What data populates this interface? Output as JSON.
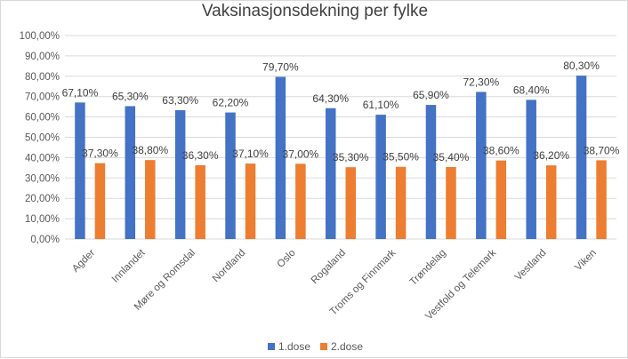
{
  "chart_data": {
    "type": "bar",
    "title": "Vaksinasjonsdekning per fylke",
    "xlabel": "",
    "ylabel": "",
    "ylim": [
      0,
      100
    ],
    "yticks": [
      "0,00%",
      "10,00%",
      "20,00%",
      "30,00%",
      "40,00%",
      "50,00%",
      "60,00%",
      "70,00%",
      "80,00%",
      "90,00%",
      "100,00%"
    ],
    "categories": [
      "Agder",
      "Innlandet",
      "Møre og Romsdal",
      "Nordland",
      "Oslo",
      "Rogaland",
      "Troms og Finnmark",
      "Trøndelag",
      "Vestfold og Telemark",
      "Vestland",
      "Viken"
    ],
    "series": [
      {
        "name": "1.dose",
        "color": "#4472c4",
        "values": [
          67.1,
          65.3,
          63.3,
          62.2,
          79.7,
          64.3,
          61.1,
          65.9,
          72.3,
          68.4,
          80.3
        ],
        "labels": [
          "67,10%",
          "65,30%",
          "63,30%",
          "62,20%",
          "79,70%",
          "64,30%",
          "61,10%",
          "65,90%",
          "72,30%",
          "68,40%",
          "80,30%"
        ]
      },
      {
        "name": "2.dose",
        "color": "#ed7d31",
        "values": [
          37.3,
          38.8,
          36.3,
          37.1,
          37.0,
          35.3,
          35.5,
          35.4,
          38.6,
          36.2,
          38.7
        ],
        "labels": [
          "37,30%",
          "38,80%",
          "36,30%",
          "37,10%",
          "37,00%",
          "35,30%",
          "35,50%",
          "35,40%",
          "38,60%",
          "36,20%",
          "38,70%"
        ]
      }
    ],
    "grid": true,
    "gridcolor": "#d9d9d9",
    "legend": "bottom"
  }
}
